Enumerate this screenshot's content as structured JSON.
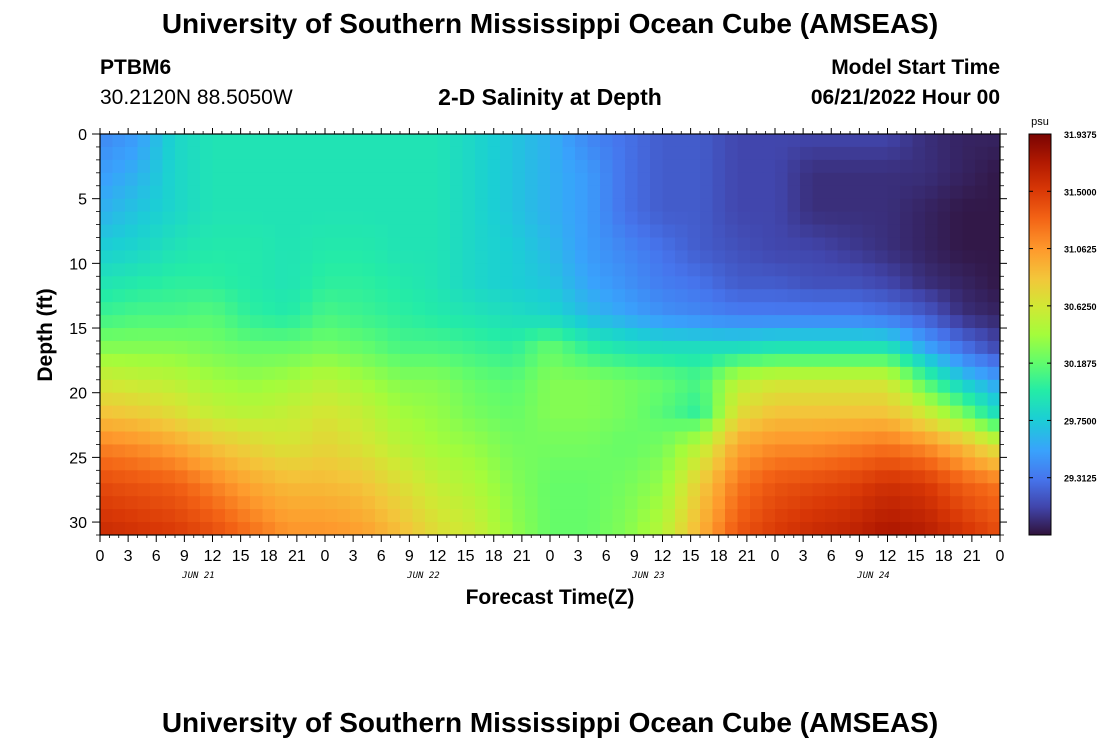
{
  "header": {
    "title": "University of Southern Mississippi Ocean Cube (AMSEAS)",
    "station_id": "PTBM6",
    "station_coords": "30.2120N  88.5050W",
    "plot_title": "2-D Salinity at Depth",
    "start_label": "Model Start Time",
    "start_value": "06/21/2022 Hour 00"
  },
  "footer": {
    "title": "University of Southern Mississippi Ocean Cube (AMSEAS)"
  },
  "chart_data": {
    "type": "heatmap",
    "title": "2-D Salinity at Depth",
    "xlabel": "Forecast Time(Z)",
    "ylabel": "Depth (ft)",
    "x_tick_labels": [
      "0",
      "3",
      "6",
      "9",
      "12",
      "15",
      "18",
      "21",
      "0",
      "3",
      "6",
      "9",
      "12",
      "15",
      "18",
      "21",
      "0",
      "3",
      "6",
      "9",
      "12",
      "15",
      "18",
      "21",
      "0",
      "3",
      "6",
      "9",
      "12",
      "15",
      "18",
      "21",
      "0"
    ],
    "day_labels": [
      "JUN 21",
      "JUN 22",
      "JUN 23",
      "JUN 24"
    ],
    "xlim_hours": [
      0,
      96
    ],
    "ylim_ft": [
      0,
      31
    ],
    "y_ticks": [
      0,
      5,
      10,
      15,
      20,
      25,
      30
    ],
    "colorbar": {
      "unit": "psu",
      "vmin": 28.875,
      "vmax": 31.9375,
      "tick_labels": [
        "31.9375",
        "31.5000",
        "31.0625",
        "30.6250",
        "30.1875",
        "29.7500",
        "29.3125"
      ]
    },
    "columns_hours": [
      0,
      4,
      8,
      12,
      16,
      20,
      24,
      28,
      32,
      36,
      40,
      44,
      48,
      52,
      56,
      60,
      64,
      68,
      72,
      76,
      80,
      84,
      88,
      92,
      96
    ],
    "rows_depth_ft": [
      0,
      3,
      6,
      9,
      11.5,
      14,
      16.5,
      19,
      21.5,
      24,
      27,
      31
    ],
    "salinity_psu": [
      [
        29.4,
        29.5,
        29.8,
        29.9,
        29.9,
        29.9,
        29.9,
        29.9,
        29.9,
        29.9,
        29.8,
        29.7,
        29.6,
        29.4,
        29.3,
        29.2,
        29.2,
        29.1,
        29.1,
        29.1,
        29.1,
        29.1,
        29.0,
        28.95,
        28.95
      ],
      [
        29.5,
        29.6,
        29.8,
        29.9,
        29.9,
        29.9,
        29.9,
        29.9,
        29.9,
        29.9,
        29.8,
        29.7,
        29.6,
        29.5,
        29.3,
        29.2,
        29.2,
        29.1,
        29.1,
        29.0,
        29.0,
        29.0,
        29.0,
        28.95,
        28.9
      ],
      [
        29.6,
        29.7,
        29.8,
        29.9,
        29.9,
        29.9,
        29.9,
        29.9,
        29.9,
        29.9,
        29.8,
        29.7,
        29.6,
        29.5,
        29.3,
        29.2,
        29.2,
        29.1,
        29.1,
        29.0,
        29.0,
        29.0,
        28.95,
        28.9,
        28.9
      ],
      [
        29.75,
        29.8,
        29.9,
        29.95,
        29.95,
        29.9,
        29.95,
        29.95,
        29.9,
        29.9,
        29.8,
        29.75,
        29.65,
        29.5,
        29.4,
        29.3,
        29.2,
        29.15,
        29.1,
        29.1,
        29.05,
        29.0,
        28.95,
        28.9,
        28.9
      ],
      [
        29.9,
        29.95,
        30.0,
        30.0,
        29.95,
        29.9,
        30.0,
        30.0,
        29.95,
        29.9,
        29.8,
        29.75,
        29.7,
        29.55,
        29.45,
        29.35,
        29.3,
        29.2,
        29.2,
        29.15,
        29.15,
        29.1,
        29.0,
        28.95,
        28.9
      ],
      [
        30.05,
        30.1,
        30.1,
        30.15,
        30.0,
        29.95,
        30.1,
        30.05,
        30.0,
        29.95,
        29.9,
        29.85,
        29.8,
        29.65,
        29.55,
        29.45,
        29.4,
        29.35,
        29.35,
        29.35,
        29.35,
        29.3,
        29.2,
        29.0,
        28.95
      ],
      [
        30.3,
        30.3,
        30.3,
        30.25,
        30.2,
        30.2,
        30.25,
        30.2,
        30.1,
        30.1,
        30.05,
        30.0,
        30.2,
        30.0,
        29.9,
        29.85,
        29.85,
        29.85,
        29.9,
        29.9,
        29.9,
        29.9,
        29.55,
        29.3,
        29.1
      ],
      [
        30.6,
        30.55,
        30.5,
        30.4,
        30.35,
        30.4,
        30.5,
        30.4,
        30.3,
        30.3,
        30.2,
        30.15,
        30.3,
        30.3,
        30.25,
        30.2,
        30.1,
        30.5,
        30.6,
        30.6,
        30.6,
        30.6,
        30.1,
        29.7,
        29.5
      ],
      [
        30.85,
        30.8,
        30.7,
        30.55,
        30.5,
        30.55,
        30.65,
        30.55,
        30.4,
        30.35,
        30.25,
        30.2,
        30.3,
        30.3,
        30.25,
        30.15,
        30.0,
        30.7,
        30.85,
        30.85,
        30.85,
        30.85,
        30.6,
        30.25,
        29.8
      ],
      [
        31.15,
        31.1,
        31.0,
        30.85,
        30.75,
        30.65,
        30.75,
        30.65,
        30.5,
        30.4,
        30.35,
        30.25,
        30.25,
        30.25,
        30.2,
        30.25,
        30.5,
        31.0,
        31.1,
        31.1,
        31.15,
        31.2,
        31.1,
        30.9,
        30.6
      ],
      [
        31.4,
        31.35,
        31.3,
        31.15,
        31.0,
        30.9,
        30.9,
        30.85,
        30.7,
        30.55,
        30.45,
        30.3,
        30.2,
        30.2,
        30.25,
        30.35,
        30.8,
        31.2,
        31.35,
        31.4,
        31.45,
        31.55,
        31.5,
        31.3,
        31.2
      ],
      [
        31.6,
        31.55,
        31.5,
        31.4,
        31.25,
        31.1,
        31.1,
        31.05,
        30.9,
        30.7,
        30.6,
        30.35,
        30.2,
        30.2,
        30.3,
        30.5,
        30.95,
        31.35,
        31.5,
        31.6,
        31.65,
        31.75,
        31.7,
        31.55,
        31.4
      ]
    ]
  }
}
